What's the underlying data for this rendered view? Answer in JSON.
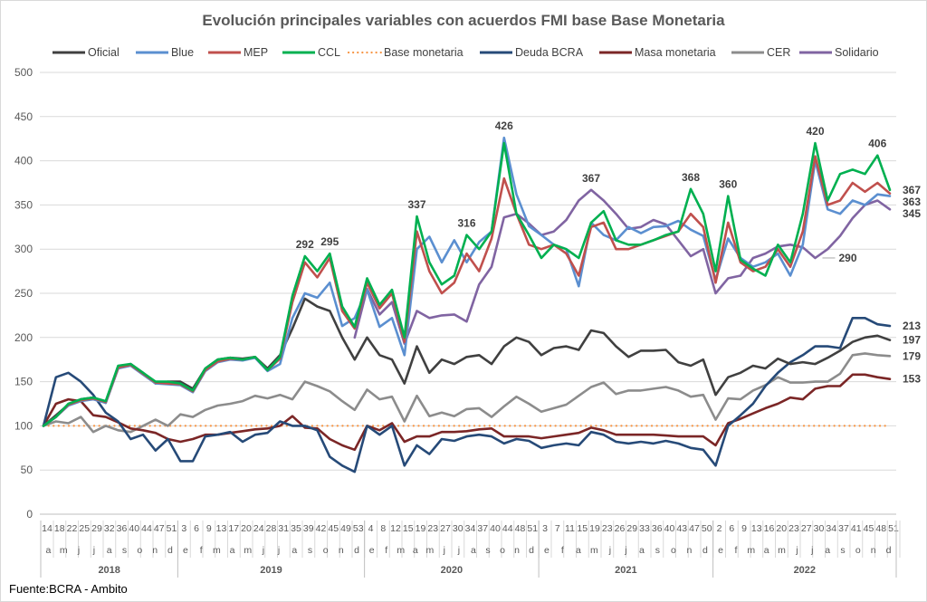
{
  "chart_data": {
    "type": "line",
    "title": "Evolución principales variables con acuerdos FMI base Base Monetaria",
    "source": "Fuente:BCRA - Ambito",
    "ylim": [
      0,
      500
    ],
    "ytick_step": 50,
    "grid": true,
    "legend_position": "top",
    "x_axis": {
      "years": [
        {
          "year": "2018",
          "months": [
            "a",
            "m",
            "j",
            "j",
            "a",
            "s",
            "o",
            "n",
            "d"
          ],
          "weeks": [
            "14",
            "18",
            "22",
            "25",
            "29",
            "32",
            "36",
            "40",
            "44",
            "47",
            "51"
          ]
        },
        {
          "year": "2019",
          "months": [
            "e",
            "f",
            "m",
            "a",
            "m",
            "j",
            "j",
            "a",
            "s",
            "o",
            "n",
            "d"
          ],
          "weeks": [
            "3",
            "6",
            "9",
            "13",
            "17",
            "20",
            "24",
            "28",
            "31",
            "35",
            "39",
            "42",
            "45",
            "49",
            "53"
          ]
        },
        {
          "year": "2020",
          "months": [
            "e",
            "f",
            "m",
            "a",
            "m",
            "j",
            "j",
            "a",
            "s",
            "o",
            "n",
            "d"
          ],
          "weeks": [
            "4",
            "8",
            "12",
            "15",
            "19",
            "23",
            "27",
            "30",
            "34",
            "37",
            "40",
            "44",
            "48",
            "51"
          ]
        },
        {
          "year": "2021",
          "months": [
            "e",
            "f",
            "a",
            "m",
            "j",
            "j",
            "a",
            "s",
            "o",
            "n",
            "d"
          ],
          "weeks": [
            "3",
            "7",
            "11",
            "15",
            "19",
            "23",
            "26",
            "29",
            "33",
            "36",
            "40",
            "43",
            "47",
            "50"
          ]
        },
        {
          "year": "2022",
          "months": [
            "e",
            "f",
            "m",
            "a",
            "m",
            "j",
            "j",
            "a",
            "s",
            "o",
            "n",
            "d"
          ],
          "weeks": [
            "2",
            "6",
            "9",
            "13",
            "16",
            "20",
            "23",
            "27",
            "30",
            "34",
            "37",
            "41",
            "45",
            "48",
            "51"
          ]
        }
      ]
    },
    "series": [
      {
        "name": "Base monetaria",
        "color": "#f79646",
        "style": "dotted",
        "values": [
          100,
          100,
          100,
          100,
          100,
          100,
          100,
          100,
          100,
          100,
          100,
          100,
          100,
          100,
          100,
          100,
          100,
          100,
          100,
          100,
          100,
          100,
          100,
          100,
          100,
          100,
          100,
          100,
          100,
          100,
          100,
          100,
          100,
          100,
          100,
          100,
          100,
          100,
          100,
          100,
          100,
          100,
          100,
          100,
          100,
          100,
          100,
          100,
          100,
          100,
          100,
          100,
          100,
          100,
          100,
          100,
          100,
          100,
          100,
          100,
          100,
          100,
          100,
          100,
          100,
          100,
          100,
          100,
          100
        ]
      },
      {
        "name": "CER",
        "color": "#8c8c8c",
        "style": "solid",
        "values": [
          100,
          105,
          103,
          110,
          93,
          100,
          95,
          93,
          100,
          107,
          100,
          113,
          110,
          118,
          123,
          125,
          128,
          134,
          131,
          135,
          130,
          150,
          145,
          139,
          128,
          118,
          141,
          130,
          133,
          105,
          134,
          111,
          115,
          111,
          119,
          120,
          110,
          122,
          133,
          125,
          116,
          120,
          124,
          134,
          144,
          149,
          136,
          140,
          140,
          142,
          144,
          140,
          133,
          135,
          107,
          131,
          130,
          140,
          146,
          155,
          149,
          149,
          150,
          150,
          159,
          180,
          182,
          180,
          179
        ]
      },
      {
        "name": "Masa monetaria",
        "color": "#7b2626",
        "style": "solid",
        "values": [
          100,
          125,
          130,
          128,
          112,
          110,
          104,
          97,
          95,
          92,
          85,
          82,
          85,
          90,
          90,
          92,
          94,
          96,
          97,
          100,
          111,
          98,
          97,
          85,
          78,
          73,
          100,
          95,
          103,
          82,
          88,
          88,
          93,
          93,
          94,
          96,
          97,
          88,
          88,
          88,
          86,
          88,
          90,
          92,
          98,
          95,
          90,
          90,
          90,
          90,
          89,
          88,
          88,
          88,
          78,
          103,
          108,
          114,
          120,
          125,
          132,
          130,
          142,
          145,
          145,
          158,
          158,
          155,
          153
        ]
      },
      {
        "name": "Deuda BCRA",
        "color": "#264a78",
        "style": "solid",
        "values": [
          100,
          155,
          160,
          150,
          135,
          115,
          105,
          85,
          90,
          72,
          85,
          60,
          60,
          88,
          90,
          93,
          82,
          90,
          92,
          105,
          100,
          100,
          95,
          65,
          55,
          48,
          100,
          90,
          100,
          55,
          78,
          68,
          85,
          83,
          88,
          90,
          88,
          80,
          85,
          83,
          75,
          78,
          80,
          78,
          93,
          90,
          82,
          80,
          82,
          80,
          83,
          80,
          75,
          73,
          55,
          100,
          112,
          125,
          145,
          160,
          172,
          180,
          190,
          190,
          188,
          222,
          222,
          215,
          213
        ]
      },
      {
        "name": "Oficial",
        "color": "#404040",
        "style": "solid",
        "values": [
          100,
          112,
          124,
          130,
          132,
          126,
          165,
          170,
          160,
          148,
          150,
          150,
          142,
          165,
          175,
          177,
          176,
          178,
          165,
          180,
          210,
          244,
          235,
          230,
          200,
          175,
          200,
          180,
          175,
          148,
          190,
          160,
          175,
          170,
          178,
          180,
          170,
          190,
          200,
          195,
          180,
          188,
          190,
          186,
          208,
          205,
          190,
          178,
          185,
          185,
          186,
          172,
          168,
          175,
          135,
          155,
          160,
          168,
          165,
          176,
          170,
          172,
          170,
          177,
          185,
          195,
          200,
          202,
          197
        ]
      },
      {
        "name": "Solidario",
        "color": "#8064a2",
        "style": "solid",
        "values": [
          null,
          null,
          null,
          null,
          null,
          null,
          null,
          null,
          null,
          null,
          null,
          null,
          null,
          null,
          null,
          null,
          null,
          null,
          null,
          null,
          null,
          null,
          null,
          null,
          null,
          200,
          255,
          226,
          240,
          193,
          230,
          222,
          225,
          226,
          218,
          260,
          280,
          336,
          340,
          329,
          316,
          320,
          333,
          355,
          367,
          355,
          340,
          323,
          325,
          333,
          328,
          310,
          292,
          300,
          250,
          267,
          270,
          290,
          295,
          303,
          305,
          302,
          290,
          300,
          315,
          335,
          350,
          355,
          345
        ]
      },
      {
        "name": "Blue",
        "color": "#5b8fd0",
        "style": "solid",
        "values": [
          100,
          110,
          123,
          128,
          130,
          126,
          165,
          168,
          158,
          148,
          147,
          146,
          138,
          162,
          172,
          175,
          174,
          177,
          162,
          170,
          222,
          250,
          245,
          262,
          213,
          222,
          254,
          212,
          222,
          180,
          300,
          314,
          285,
          310,
          285,
          308,
          320,
          426,
          362,
          326,
          316,
          305,
          300,
          258,
          330,
          316,
          310,
          325,
          318,
          325,
          326,
          332,
          322,
          315,
          265,
          312,
          290,
          280,
          285,
          295,
          270,
          305,
          400,
          345,
          340,
          355,
          350,
          362,
          360
        ]
      },
      {
        "name": "MEP",
        "color": "#c0504d",
        "style": "solid",
        "values": [
          100,
          110,
          124,
          129,
          131,
          127,
          166,
          169,
          159,
          149,
          148,
          147,
          139,
          163,
          173,
          176,
          175,
          178,
          163,
          176,
          240,
          285,
          268,
          290,
          230,
          210,
          262,
          233,
          250,
          195,
          320,
          275,
          250,
          262,
          295,
          275,
          312,
          380,
          340,
          305,
          300,
          305,
          295,
          270,
          325,
          330,
          300,
          300,
          305,
          310,
          315,
          320,
          340,
          325,
          262,
          330,
          285,
          275,
          280,
          300,
          280,
          320,
          405,
          350,
          355,
          375,
          365,
          375,
          363
        ]
      },
      {
        "name": "CCL",
        "color": "#00b050",
        "style": "solid",
        "values": [
          100,
          110,
          125,
          130,
          132,
          128,
          168,
          170,
          160,
          150,
          150,
          148,
          140,
          165,
          175,
          177,
          175,
          178,
          163,
          178,
          247,
          292,
          275,
          295,
          235,
          212,
          267,
          237,
          254,
          200,
          337,
          285,
          260,
          270,
          316,
          300,
          320,
          420,
          340,
          316,
          290,
          305,
          300,
          290,
          330,
          343,
          310,
          305,
          305,
          310,
          316,
          320,
          368,
          340,
          275,
          360,
          288,
          278,
          270,
          305,
          285,
          340,
          420,
          355,
          385,
          390,
          385,
          406,
          367
        ]
      }
    ],
    "legend_order": [
      "Oficial",
      "Blue",
      "MEP",
      "CCL",
      "Base monetaria",
      "Deuda BCRA",
      "Masa monetaria",
      "CER",
      "Solidario"
    ],
    "annotations": [
      {
        "text": "292",
        "year": "2019",
        "week": "39",
        "value": 292
      },
      {
        "text": "295",
        "year": "2019",
        "week": "45",
        "value": 295
      },
      {
        "text": "337",
        "year": "2020",
        "week": "19",
        "value": 337
      },
      {
        "text": "316",
        "year": "2020",
        "week": "34",
        "value": 316
      },
      {
        "text": "426",
        "year": "2020",
        "week": "44",
        "value": 426
      },
      {
        "text": "367",
        "year": "2021",
        "week": "19",
        "value": 367
      },
      {
        "text": "368",
        "year": "2021",
        "week": "47",
        "value": 368
      },
      {
        "text": "360",
        "year": "2022",
        "week": "6",
        "value": 360
      },
      {
        "text": "420",
        "year": "2022",
        "week": "30",
        "value": 420
      },
      {
        "text": "406",
        "year": "2022",
        "week": "48",
        "value": 406
      },
      {
        "text": "290",
        "year": "2022",
        "week": "30",
        "value": 290,
        "side": "right"
      }
    ],
    "end_labels": [
      {
        "text": "367",
        "series": "CCL"
      },
      {
        "text": "363",
        "series": "MEP"
      },
      {
        "text": "345",
        "series": "Solidario"
      },
      {
        "text": "213",
        "series": "Deuda BCRA"
      },
      {
        "text": "197",
        "series": "Oficial"
      },
      {
        "text": "179",
        "series": "CER"
      },
      {
        "text": "153",
        "series": "Masa monetaria"
      }
    ]
  }
}
